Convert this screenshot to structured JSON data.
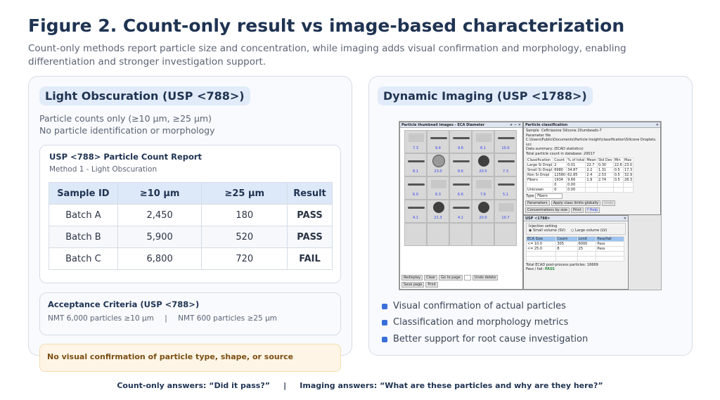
{
  "title": "Figure 2. Count-only result vs image-based characterization",
  "subtitle": "Count-only methods report particle size and concentration, while imaging adds visual confirmation and morphology, enabling differentiation and stronger investigation support.",
  "left": {
    "heading": "Light Obscuration (USP <788>)",
    "desc_line1": "Particle counts only (≥10 µm, ≥25 µm)",
    "desc_line2": "No particle identification or morphology",
    "report": {
      "title": "USP <788> Particle Count Report",
      "method": "Method 1 - Light Obscuration",
      "headers": [
        "Sample ID",
        "≥10 µm",
        "≥25 µm",
        "Result"
      ],
      "rows": [
        [
          "Batch A",
          "2,450",
          "180",
          "PASS"
        ],
        [
          "Batch B",
          "5,900",
          "520",
          "PASS"
        ],
        [
          "Batch C",
          "6,800",
          "720",
          "FAIL"
        ]
      ]
    },
    "criteria": {
      "title": "Acceptance Criteria (USP <788>)",
      "item1": "NMT 6,000 particles ≥10 µm",
      "separator": "|",
      "item2": "NMT 600 particles ≥25 µm"
    },
    "warning": "No visual confirmation of particle type, shape, or source"
  },
  "right": {
    "heading": "Dynamic Imaging (USP <1788>)",
    "bullets": [
      "Visual confirmation of actual particles",
      "Classification and morphology metrics",
      "Better support for root cause investigation"
    ],
    "screenshot": {
      "thumb_title": "Particle thumbnail images - ECA Diameter",
      "thumb_labels": [
        "7.3",
        "9.4",
        "9.6",
        "8.1",
        "10.0",
        "8.1",
        "23.0",
        "8.6",
        "20.5",
        "7.3",
        "6.0",
        "6.3",
        "6.6",
        "7.6",
        "5.1",
        "4.1",
        "21.3",
        "4.1",
        "20.0",
        "10.7"
      ],
      "thumb_kinds": [
        "img",
        "rod",
        "rod",
        "img",
        "rod",
        "rod",
        "sph",
        "rod",
        "blob",
        "rod",
        "rod",
        "img",
        "rod",
        "img",
        "rod",
        "rod",
        "blob",
        "rod",
        "blob",
        "img"
      ],
      "thumb_buttons": [
        "Redisplay",
        "Clear",
        "Go to page",
        "Undo delete",
        "Save page",
        "Print"
      ],
      "class_title": "Particle classification",
      "sample_label": "Sample",
      "sample_value": "Ceftriaxone Silicone 20umbeads-7",
      "param_label": "Parameter file",
      "param_value": "C:\\Users\\Public\\Documents\\Particle Insight\\classification\\Silicone Droplets.scc",
      "summary_label": "Data summary: (ECAD statistics)",
      "total_label": "Total particle count in database:",
      "total_value": "20017",
      "class_headers": [
        "Classification",
        "Count",
        "% of total",
        "Mean",
        "Std Dev",
        "Min",
        "Max"
      ],
      "class_rows": [
        [
          "Large Si Dropl",
          "2",
          "0.01",
          "22.7",
          "0.30",
          "22.6",
          "23.0"
        ],
        [
          "Small Si Dropl",
          "6980",
          "34.87",
          "2.2",
          "1.31",
          "0.5",
          "17.3"
        ],
        [
          "Non Si Dropl",
          "12580",
          "62.85",
          "2.4",
          "2.53",
          "0.5",
          "32.9"
        ],
        [
          "Fibers",
          "1934",
          "9.66",
          "1.9",
          "2.74",
          "0.5",
          "28.3"
        ],
        [
          "",
          "0",
          "0.00",
          "",
          "",
          "",
          ""
        ],
        [
          "Unknown",
          "0",
          "0.00",
          "",
          "",
          "",
          ""
        ]
      ],
      "type_label": "Type",
      "type_value": "Fibers",
      "class_buttons": [
        "Parameters",
        "Apply class limits globally",
        "Undo",
        "Concentrations by size",
        "Print",
        "? Help"
      ],
      "usp_title": "USP <1788>",
      "injection_label": "Injection setting",
      "small_volume": "Small volume (SV)",
      "large_volume": "Large volume (LV)",
      "usp_headers": [
        "ECA Size",
        "Count",
        "Limit",
        "Pass/fail"
      ],
      "usp_rows": [
        [
          "<= 10.0",
          "305",
          "6000",
          "Pass"
        ],
        [
          "<= 25.0",
          "8",
          "25",
          "Pass"
        ]
      ],
      "post_label": "Total ECAD post-process particles:",
      "post_value": "16669",
      "passfail_label": "Pass / fail:",
      "passfail_value": "PASS"
    }
  },
  "caption": {
    "left": "Count-only answers: “Did it pass?”",
    "separator": "|",
    "right": "Imaging answers: “What are these particles and why are they here?”"
  },
  "colors": {
    "title": "#1f3352",
    "pass": "#2e8b3e",
    "fail": "#d03a3a",
    "accent": "#3a6fd8",
    "warning_bg": "#fff5e6"
  }
}
